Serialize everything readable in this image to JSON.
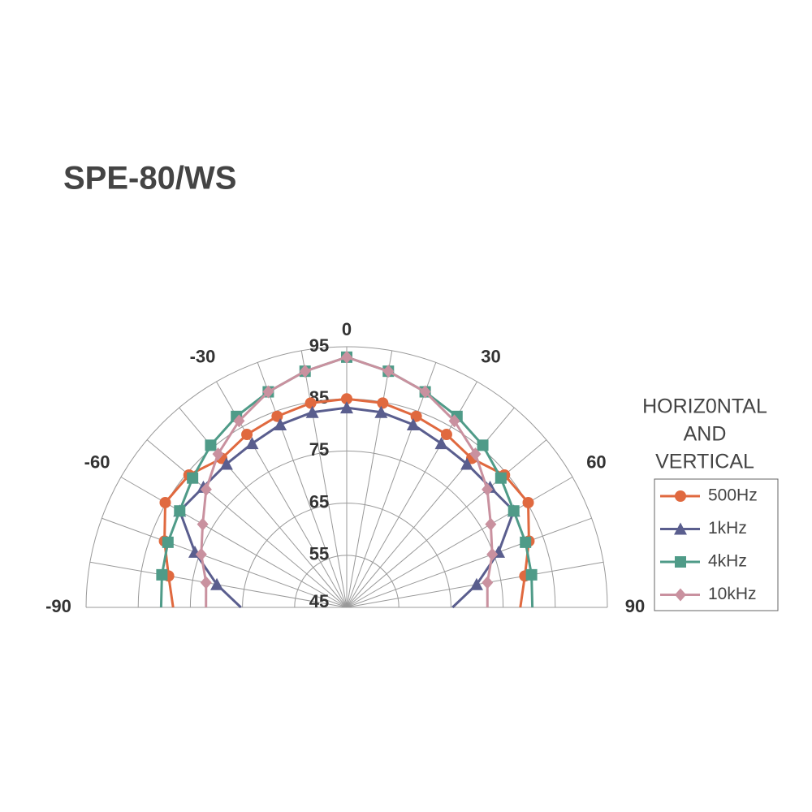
{
  "chart_data": {
    "type": "polar-half",
    "title": "SPE-80/WS",
    "x": [
      -90,
      -80,
      -70,
      -60,
      -50,
      -40,
      -30,
      -20,
      -10,
      0,
      10,
      20,
      30,
      40,
      50,
      60,
      70,
      80,
      90
    ],
    "xticks": [
      -90,
      -60,
      -30,
      0,
      30,
      60,
      90
    ],
    "ylim": [
      45,
      95
    ],
    "yticks": [
      45,
      55,
      65,
      75,
      85,
      95
    ],
    "legend_title": [
      "HORIZ0NTAL",
      "AND",
      "VERTICAL"
    ],
    "series": [
      {
        "name": "500Hz",
        "color": "#e0693f",
        "marker": "circle",
        "values": [
          78.3,
          79.7,
          82.2,
          85.2,
          84.5,
          82.3,
          83.3,
          84,
          84.8,
          85,
          84.8,
          84,
          83.3,
          82.3,
          84.5,
          85.2,
          82.2,
          79.7,
          78.3
        ]
      },
      {
        "name": "1kHz",
        "color": "#5a5e8e",
        "marker": "triangle",
        "values": [
          65.3,
          70.3,
          76,
          82,
          80.9,
          80.9,
          81.3,
          82.3,
          83,
          83.3,
          83,
          82.3,
          81.3,
          80.9,
          80.9,
          82,
          76,
          70.3,
          65.3
        ]
      },
      {
        "name": "4kHz",
        "color": "#4f9b88",
        "marker": "square",
        "values": [
          80.6,
          81,
          81.5,
          82,
          83.6,
          85.6,
          87.3,
          89,
          91,
          93,
          91,
          89,
          87.3,
          85.6,
          83.6,
          82,
          81.5,
          81,
          80.6
        ]
      },
      {
        "name": "10kHz",
        "color": "#c9919f",
        "marker": "diamond",
        "values": [
          72,
          72.4,
          74.7,
          76.9,
          80.2,
          83.4,
          86.3,
          89,
          91,
          93,
          91,
          89,
          86.3,
          83.4,
          80.2,
          76.9,
          74.7,
          72.4,
          72
        ]
      }
    ]
  }
}
